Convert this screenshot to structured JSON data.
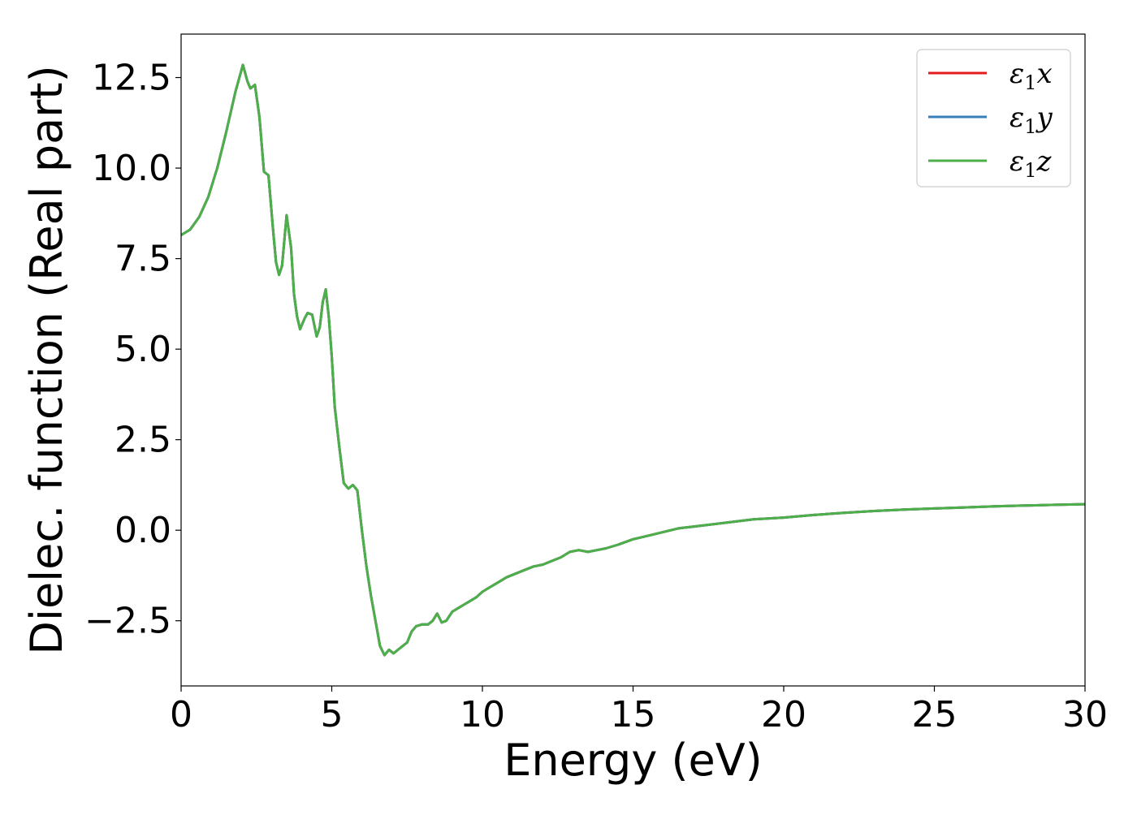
{
  "chart_data": {
    "type": "line",
    "title": "",
    "xlabel": "Energy (eV)",
    "ylabel": "Dielec. function (Real part)",
    "xlim": [
      0,
      30
    ],
    "ylim": [
      -4.3,
      13.7
    ],
    "xticks": [
      0,
      5,
      10,
      15,
      20,
      25,
      30
    ],
    "xtick_labels": [
      "0",
      "5",
      "10",
      "15",
      "20",
      "25",
      "30"
    ],
    "yticks": [
      -2.5,
      0.0,
      2.5,
      5.0,
      7.5,
      10.0,
      12.5
    ],
    "ytick_labels": [
      "−2.5",
      "0.0",
      "2.5",
      "5.0",
      "7.5",
      "10.0",
      "12.5"
    ],
    "grid": false,
    "legend_position": "top-right",
    "series": [
      {
        "name": "ε1x",
        "legend_main": "ε",
        "legend_sub": "1",
        "legend_suffix": "x",
        "color": "#e41a1c",
        "x": [
          0,
          0.3,
          0.6,
          0.9,
          1.2,
          1.5,
          1.8,
          2.05,
          2.2,
          2.3,
          2.45,
          2.6,
          2.75,
          2.9,
          3.05,
          3.15,
          3.25,
          3.35,
          3.5,
          3.65,
          3.75,
          3.85,
          3.95,
          4.1,
          4.2,
          4.35,
          4.5,
          4.6,
          4.7,
          4.8,
          4.9,
          5.0,
          5.1,
          5.25,
          5.4,
          5.55,
          5.7,
          5.85,
          6.0,
          6.15,
          6.3,
          6.45,
          6.6,
          6.75,
          6.9,
          7.05,
          7.2,
          7.35,
          7.5,
          7.65,
          7.8,
          8.0,
          8.2,
          8.35,
          8.5,
          8.65,
          8.8,
          9.0,
          9.2,
          9.4,
          9.6,
          9.8,
          10.0,
          10.2,
          10.5,
          10.8,
          11.1,
          11.4,
          11.7,
          12.0,
          12.3,
          12.6,
          12.9,
          13.2,
          13.5,
          13.8,
          14.1,
          14.5,
          15.0,
          15.5,
          16.0,
          16.5,
          17.0,
          18.0,
          19.0,
          20.0,
          21.0,
          22.0,
          23.0,
          24.0,
          25.0,
          26.0,
          27.0,
          28.0,
          29.0,
          30.0
        ],
        "y": [
          8.15,
          8.3,
          8.65,
          9.2,
          10.0,
          11.0,
          12.1,
          12.85,
          12.4,
          12.2,
          12.3,
          11.4,
          9.9,
          9.8,
          8.3,
          7.4,
          7.05,
          7.3,
          8.7,
          7.8,
          6.5,
          5.9,
          5.55,
          5.85,
          6.0,
          5.95,
          5.35,
          5.6,
          6.3,
          6.65,
          5.9,
          4.8,
          3.4,
          2.3,
          1.3,
          1.15,
          1.25,
          1.1,
          0.0,
          -1.0,
          -1.8,
          -2.5,
          -3.2,
          -3.45,
          -3.3,
          -3.4,
          -3.3,
          -3.2,
          -3.1,
          -2.8,
          -2.65,
          -2.6,
          -2.6,
          -2.5,
          -2.3,
          -2.55,
          -2.5,
          -2.25,
          -2.15,
          -2.05,
          -1.95,
          -1.85,
          -1.7,
          -1.6,
          -1.45,
          -1.3,
          -1.2,
          -1.1,
          -1.0,
          -0.95,
          -0.85,
          -0.75,
          -0.6,
          -0.55,
          -0.6,
          -0.55,
          -0.5,
          -0.4,
          -0.25,
          -0.15,
          -0.05,
          0.05,
          0.1,
          0.2,
          0.3,
          0.35,
          0.42,
          0.48,
          0.53,
          0.57,
          0.6,
          0.63,
          0.66,
          0.68,
          0.7,
          0.72
        ]
      },
      {
        "name": "ε1y",
        "legend_main": "ε",
        "legend_sub": "1",
        "legend_suffix": "y",
        "color": "#377eb8",
        "same_as": 0
      },
      {
        "name": "ε1z",
        "legend_main": "ε",
        "legend_sub": "1",
        "legend_suffix": "z",
        "color": "#4daf4a",
        "same_as": 0
      }
    ]
  }
}
